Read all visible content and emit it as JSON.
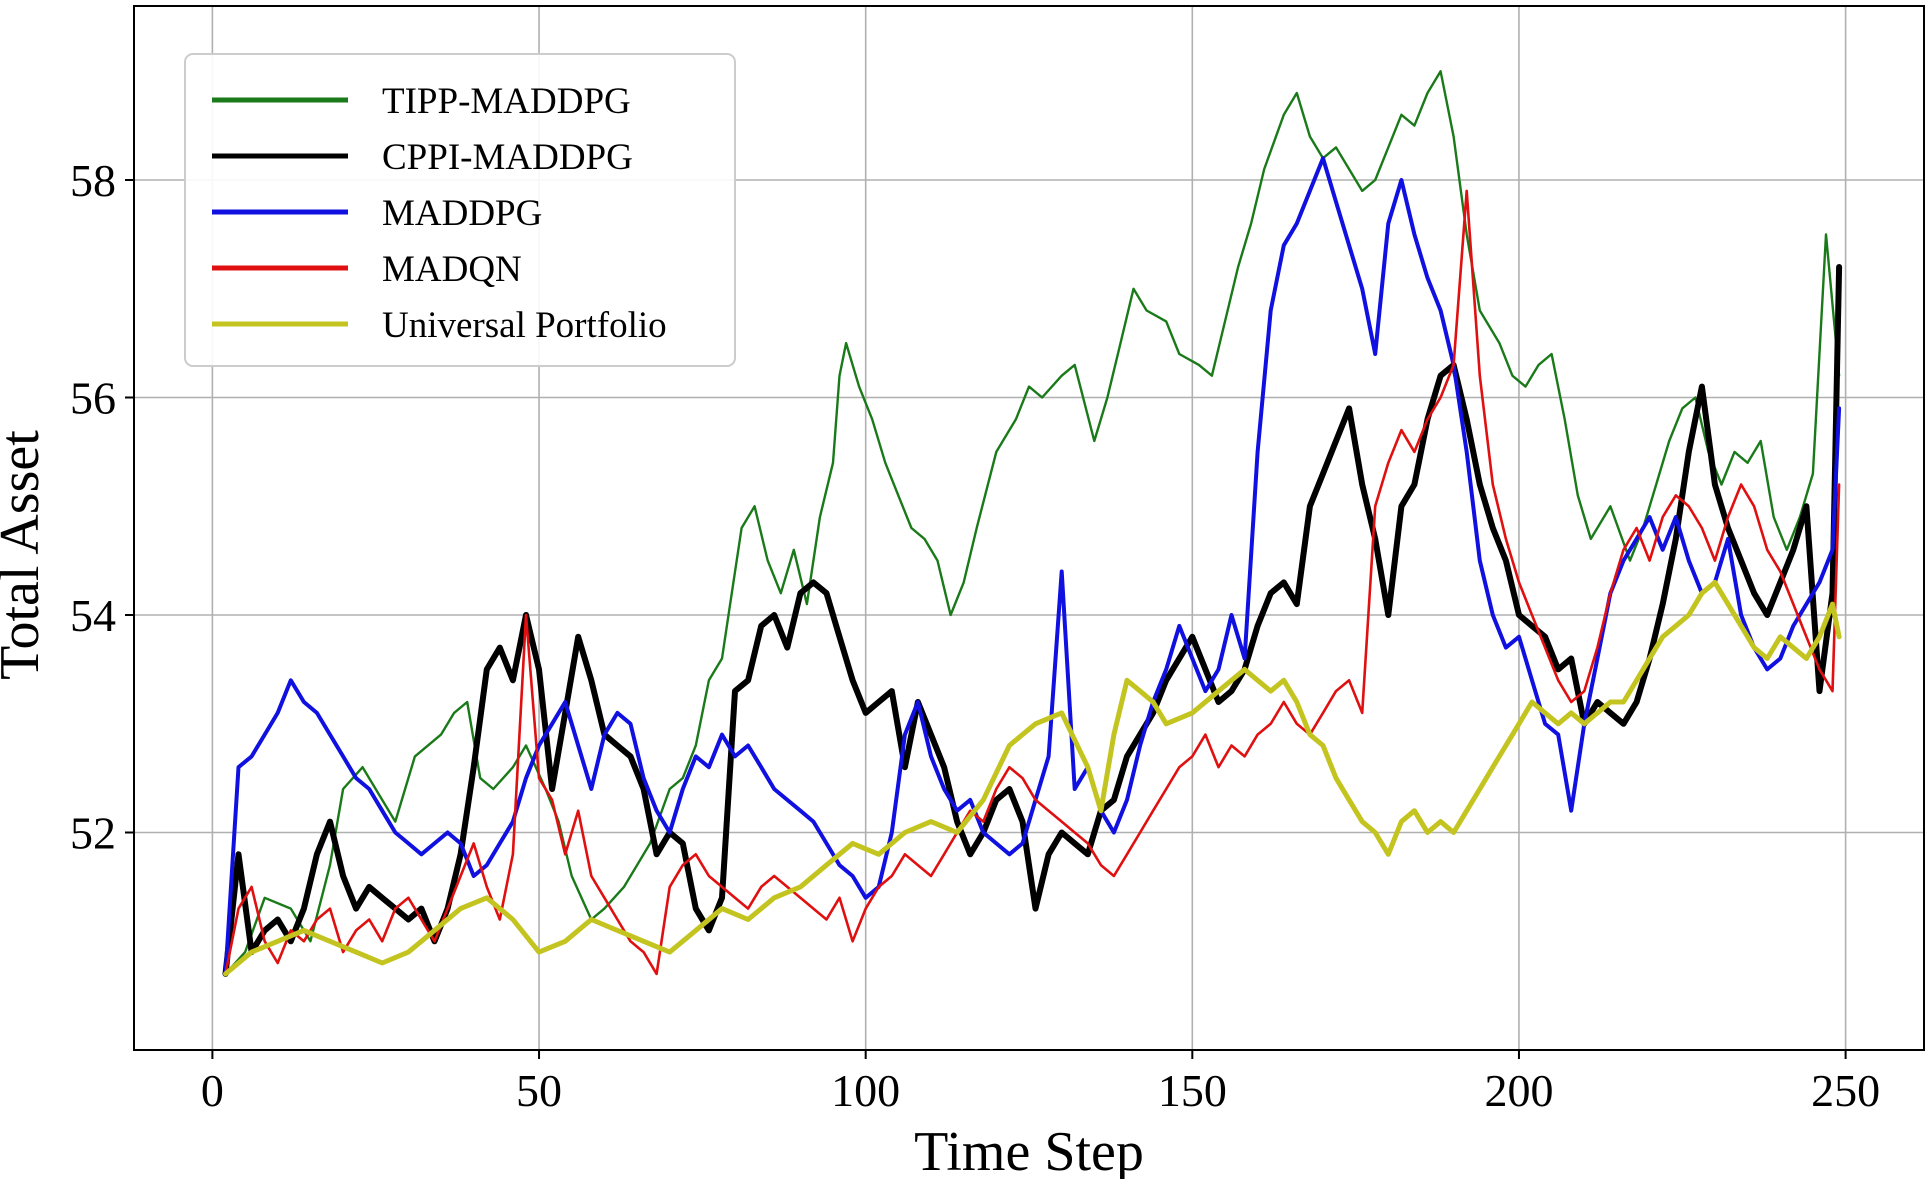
{
  "chart_data": {
    "type": "line",
    "title": "",
    "xlabel": "Time Step",
    "ylabel": "Total Asset",
    "xlim": [
      -12,
      262
    ],
    "ylim": [
      50.0,
      59.6
    ],
    "xticks": [
      0,
      50,
      100,
      150,
      200,
      250
    ],
    "yticks": [
      52,
      54,
      56,
      58
    ],
    "grid": true,
    "legend_position": "top-left",
    "series": [
      {
        "name": "TIPP-MADDPG",
        "color": "#1a7a1a",
        "width": 2.4,
        "x": [
          2,
          5,
          8,
          12,
          15,
          18,
          20,
          23,
          26,
          28,
          31,
          35,
          37,
          39,
          41,
          43,
          46,
          48,
          51,
          53,
          55,
          58,
          60,
          63,
          67,
          70,
          72,
          74,
          76,
          78,
          79,
          81,
          83,
          85,
          87,
          89,
          91,
          93,
          95,
          96,
          97,
          99,
          101,
          103,
          105,
          107,
          109,
          111,
          113,
          115,
          117,
          120,
          123,
          125,
          127,
          130,
          132,
          135,
          137,
          139,
          141,
          143,
          146,
          148,
          151,
          153,
          155,
          157,
          159,
          161,
          164,
          166,
          168,
          170,
          172,
          174,
          176,
          178,
          180,
          182,
          184,
          186,
          188,
          190,
          192,
          194,
          197,
          199,
          201,
          203,
          205,
          207,
          209,
          211,
          214,
          217,
          219,
          221,
          223,
          225,
          227,
          229,
          231,
          233,
          235,
          237,
          239,
          241,
          243,
          245,
          247,
          249
        ],
        "values": [
          50.7,
          50.9,
          51.4,
          51.3,
          51.0,
          51.7,
          52.4,
          52.6,
          52.3,
          52.1,
          52.7,
          52.9,
          53.1,
          53.2,
          52.5,
          52.4,
          52.6,
          52.8,
          52.4,
          52.1,
          51.6,
          51.2,
          51.3,
          51.5,
          51.9,
          52.4,
          52.5,
          52.8,
          53.4,
          53.6,
          54.0,
          54.8,
          55.0,
          54.5,
          54.2,
          54.6,
          54.1,
          54.9,
          55.4,
          56.2,
          56.5,
          56.1,
          55.8,
          55.4,
          55.1,
          54.8,
          54.7,
          54.5,
          54.0,
          54.3,
          54.8,
          55.5,
          55.8,
          56.1,
          56.0,
          56.2,
          56.3,
          55.6,
          56.0,
          56.5,
          57.0,
          56.8,
          56.7,
          56.4,
          56.3,
          56.2,
          56.7,
          57.2,
          57.6,
          58.1,
          58.6,
          58.8,
          58.4,
          58.2,
          58.3,
          58.1,
          57.9,
          58.0,
          58.3,
          58.6,
          58.5,
          58.8,
          59.0,
          58.4,
          57.5,
          56.8,
          56.5,
          56.2,
          56.1,
          56.3,
          56.4,
          55.8,
          55.1,
          54.7,
          55.0,
          54.5,
          54.8,
          55.2,
          55.6,
          55.9,
          56.0,
          55.5,
          55.2,
          55.5,
          55.4,
          55.6,
          54.9,
          54.6,
          54.9,
          55.3,
          57.5,
          56.2
        ]
      },
      {
        "name": "CPPI-MADDPG",
        "color": "#000000",
        "width": 6,
        "x": [
          2,
          4,
          6,
          8,
          10,
          12,
          14,
          16,
          18,
          20,
          22,
          24,
          26,
          28,
          30,
          32,
          34,
          36,
          38,
          40,
          42,
          44,
          46,
          48,
          50,
          52,
          54,
          56,
          58,
          60,
          62,
          64,
          66,
          68,
          70,
          72,
          74,
          76,
          78,
          80,
          82,
          84,
          86,
          88,
          90,
          92,
          94,
          96,
          98,
          100,
          102,
          104,
          106,
          108,
          110,
          112,
          114,
          116,
          118,
          120,
          122,
          124,
          126,
          128,
          130,
          132,
          134,
          136,
          138,
          140,
          142,
          144,
          146,
          148,
          150,
          152,
          154,
          156,
          158,
          160,
          162,
          164,
          166,
          168,
          170,
          172,
          174,
          176,
          178,
          180,
          182,
          184,
          186,
          188,
          190,
          192,
          194,
          196,
          198,
          200,
          202,
          204,
          206,
          208,
          210,
          212,
          214,
          216,
          218,
          220,
          222,
          224,
          226,
          228,
          230,
          232,
          234,
          236,
          238,
          240,
          242,
          244,
          246,
          248,
          249
        ],
        "values": [
          50.7,
          51.8,
          50.9,
          51.1,
          51.2,
          51.0,
          51.3,
          51.8,
          52.1,
          51.6,
          51.3,
          51.5,
          51.4,
          51.3,
          51.2,
          51.3,
          51.0,
          51.3,
          51.8,
          52.6,
          53.5,
          53.7,
          53.4,
          54.0,
          53.5,
          52.4,
          53.1,
          53.8,
          53.4,
          52.9,
          52.8,
          52.7,
          52.4,
          51.8,
          52.0,
          51.9,
          51.3,
          51.1,
          51.4,
          53.3,
          53.4,
          53.9,
          54.0,
          53.7,
          54.2,
          54.3,
          54.2,
          53.8,
          53.4,
          53.1,
          53.2,
          53.3,
          52.6,
          53.2,
          52.9,
          52.6,
          52.1,
          51.8,
          52.0,
          52.3,
          52.4,
          52.1,
          51.3,
          51.8,
          52.0,
          51.9,
          51.8,
          52.2,
          52.3,
          52.7,
          52.9,
          53.1,
          53.4,
          53.6,
          53.8,
          53.5,
          53.2,
          53.3,
          53.5,
          53.9,
          54.2,
          54.3,
          54.1,
          55.0,
          55.3,
          55.6,
          55.9,
          55.2,
          54.7,
          54.0,
          55.0,
          55.2,
          55.8,
          56.2,
          56.3,
          55.8,
          55.2,
          54.8,
          54.5,
          54.0,
          53.9,
          53.8,
          53.5,
          53.6,
          53.0,
          53.2,
          53.1,
          53.0,
          53.2,
          53.6,
          54.1,
          54.7,
          55.5,
          56.1,
          55.2,
          54.8,
          54.5,
          54.2,
          54.0,
          54.3,
          54.6,
          55.0,
          53.3,
          54.2,
          57.2
        ]
      },
      {
        "name": "MADDPG",
        "color": "#1010e0",
        "width": 4,
        "x": [
          2,
          4,
          6,
          8,
          10,
          12,
          14,
          16,
          18,
          20,
          22,
          24,
          26,
          28,
          30,
          32,
          34,
          36,
          38,
          40,
          42,
          44,
          46,
          48,
          50,
          52,
          54,
          56,
          58,
          60,
          62,
          64,
          66,
          68,
          70,
          72,
          74,
          76,
          78,
          80,
          82,
          84,
          86,
          88,
          90,
          92,
          94,
          96,
          98,
          100,
          102,
          104,
          106,
          108,
          110,
          112,
          114,
          116,
          118,
          120,
          122,
          124,
          126,
          128,
          130,
          132,
          134,
          136,
          138,
          140,
          142,
          144,
          146,
          148,
          150,
          152,
          154,
          156,
          158,
          160,
          162,
          164,
          166,
          168,
          170,
          172,
          174,
          176,
          178,
          180,
          182,
          184,
          186,
          188,
          190,
          192,
          194,
          196,
          198,
          200,
          202,
          204,
          206,
          208,
          210,
          212,
          214,
          216,
          218,
          220,
          222,
          224,
          226,
          228,
          230,
          232,
          234,
          236,
          238,
          240,
          242,
          244,
          246,
          248,
          249
        ],
        "values": [
          50.7,
          52.6,
          52.7,
          52.9,
          53.1,
          53.4,
          53.2,
          53.1,
          52.9,
          52.7,
          52.5,
          52.4,
          52.2,
          52.0,
          51.9,
          51.8,
          51.9,
          52.0,
          51.9,
          51.6,
          51.7,
          51.9,
          52.1,
          52.5,
          52.8,
          53.0,
          53.2,
          52.8,
          52.4,
          52.9,
          53.1,
          53.0,
          52.5,
          52.2,
          52.0,
          52.4,
          52.7,
          52.6,
          52.9,
          52.7,
          52.8,
          52.6,
          52.4,
          52.3,
          52.2,
          52.1,
          51.9,
          51.7,
          51.6,
          51.4,
          51.5,
          52.0,
          52.9,
          53.2,
          52.7,
          52.4,
          52.2,
          52.3,
          52.0,
          51.9,
          51.8,
          51.9,
          52.3,
          52.7,
          54.4,
          52.4,
          52.6,
          52.2,
          52.0,
          52.3,
          52.8,
          53.2,
          53.5,
          53.9,
          53.6,
          53.3,
          53.5,
          54.0,
          53.6,
          55.5,
          56.8,
          57.4,
          57.6,
          57.9,
          58.2,
          57.8,
          57.4,
          57.0,
          56.4,
          57.6,
          58.0,
          57.5,
          57.1,
          56.8,
          56.3,
          55.5,
          54.5,
          54.0,
          53.7,
          53.8,
          53.4,
          53.0,
          52.9,
          52.2,
          53.0,
          53.6,
          54.2,
          54.5,
          54.7,
          54.9,
          54.6,
          54.9,
          54.5,
          54.2,
          54.3,
          54.7,
          54.0,
          53.7,
          53.5,
          53.6,
          53.9,
          54.1,
          54.3,
          54.6,
          55.9
        ]
      },
      {
        "name": "MADQN",
        "color": "#e01010",
        "width": 2.6,
        "x": [
          2,
          4,
          6,
          8,
          10,
          12,
          14,
          16,
          18,
          20,
          22,
          24,
          26,
          28,
          30,
          32,
          34,
          36,
          38,
          40,
          42,
          44,
          46,
          48,
          50,
          52,
          54,
          56,
          58,
          60,
          62,
          64,
          66,
          68,
          70,
          72,
          74,
          76,
          78,
          80,
          82,
          84,
          86,
          88,
          90,
          92,
          94,
          96,
          98,
          100,
          102,
          104,
          106,
          108,
          110,
          112,
          114,
          116,
          118,
          120,
          122,
          124,
          126,
          128,
          130,
          132,
          134,
          136,
          138,
          140,
          142,
          144,
          146,
          148,
          150,
          152,
          154,
          156,
          158,
          160,
          162,
          164,
          166,
          168,
          170,
          172,
          174,
          176,
          178,
          180,
          182,
          184,
          186,
          188,
          190,
          192,
          194,
          196,
          198,
          200,
          202,
          204,
          206,
          208,
          210,
          212,
          214,
          216,
          218,
          220,
          222,
          224,
          226,
          228,
          230,
          232,
          234,
          236,
          238,
          240,
          242,
          244,
          246,
          248,
          249
        ],
        "values": [
          50.7,
          51.3,
          51.5,
          51.0,
          50.8,
          51.1,
          51.0,
          51.2,
          51.3,
          50.9,
          51.1,
          51.2,
          51.0,
          51.3,
          51.4,
          51.2,
          51.0,
          51.3,
          51.6,
          51.9,
          51.5,
          51.2,
          51.8,
          54.0,
          52.5,
          52.3,
          51.8,
          52.2,
          51.6,
          51.4,
          51.2,
          51.0,
          50.9,
          50.7,
          51.5,
          51.7,
          51.8,
          51.6,
          51.5,
          51.4,
          51.3,
          51.5,
          51.6,
          51.5,
          51.4,
          51.3,
          51.2,
          51.4,
          51.0,
          51.3,
          51.5,
          51.6,
          51.8,
          51.7,
          51.6,
          51.8,
          52.0,
          52.2,
          52.1,
          52.4,
          52.6,
          52.5,
          52.3,
          52.2,
          52.1,
          52.0,
          51.9,
          51.7,
          51.6,
          51.8,
          52.0,
          52.2,
          52.4,
          52.6,
          52.7,
          52.9,
          52.6,
          52.8,
          52.7,
          52.9,
          53.0,
          53.2,
          53.0,
          52.9,
          53.1,
          53.3,
          53.4,
          53.1,
          55.0,
          55.4,
          55.7,
          55.5,
          55.8,
          56.0,
          56.3,
          57.9,
          56.2,
          55.2,
          54.7,
          54.3,
          54.0,
          53.7,
          53.4,
          53.2,
          53.3,
          53.7,
          54.2,
          54.6,
          54.8,
          54.5,
          54.9,
          55.1,
          55.0,
          54.8,
          54.5,
          54.9,
          55.2,
          55.0,
          54.6,
          54.4,
          54.1,
          53.8,
          53.5,
          53.3,
          55.2
        ]
      },
      {
        "name": "Universal Portfolio",
        "color": "#c4c420",
        "width": 5,
        "x": [
          2,
          6,
          10,
          14,
          18,
          22,
          26,
          30,
          34,
          38,
          42,
          46,
          50,
          54,
          58,
          62,
          66,
          70,
          74,
          78,
          82,
          86,
          90,
          94,
          98,
          102,
          106,
          110,
          114,
          118,
          122,
          126,
          130,
          134,
          136,
          138,
          140,
          142,
          144,
          146,
          150,
          154,
          158,
          160,
          162,
          164,
          166,
          168,
          170,
          172,
          174,
          176,
          178,
          180,
          182,
          184,
          186,
          188,
          190,
          192,
          194,
          196,
          198,
          200,
          202,
          204,
          206,
          208,
          210,
          212,
          214,
          216,
          218,
          220,
          222,
          224,
          226,
          228,
          230,
          232,
          234,
          236,
          238,
          240,
          242,
          244,
          246,
          248,
          249
        ],
        "values": [
          50.7,
          50.9,
          51.0,
          51.1,
          51.0,
          50.9,
          50.8,
          50.9,
          51.1,
          51.3,
          51.4,
          51.2,
          50.9,
          51.0,
          51.2,
          51.1,
          51.0,
          50.9,
          51.1,
          51.3,
          51.2,
          51.4,
          51.5,
          51.7,
          51.9,
          51.8,
          52.0,
          52.1,
          52.0,
          52.3,
          52.8,
          53.0,
          53.1,
          52.6,
          52.2,
          52.9,
          53.4,
          53.3,
          53.2,
          53.0,
          53.1,
          53.3,
          53.5,
          53.4,
          53.3,
          53.4,
          53.2,
          52.9,
          52.8,
          52.5,
          52.3,
          52.1,
          52.0,
          51.8,
          52.1,
          52.2,
          52.0,
          52.1,
          52.0,
          52.2,
          52.4,
          52.6,
          52.8,
          53.0,
          53.2,
          53.1,
          53.0,
          53.1,
          53.0,
          53.1,
          53.2,
          53.2,
          53.4,
          53.6,
          53.8,
          53.9,
          54.0,
          54.2,
          54.3,
          54.1,
          53.9,
          53.7,
          53.6,
          53.8,
          53.7,
          53.6,
          53.8,
          54.1,
          53.8
        ]
      }
    ]
  }
}
